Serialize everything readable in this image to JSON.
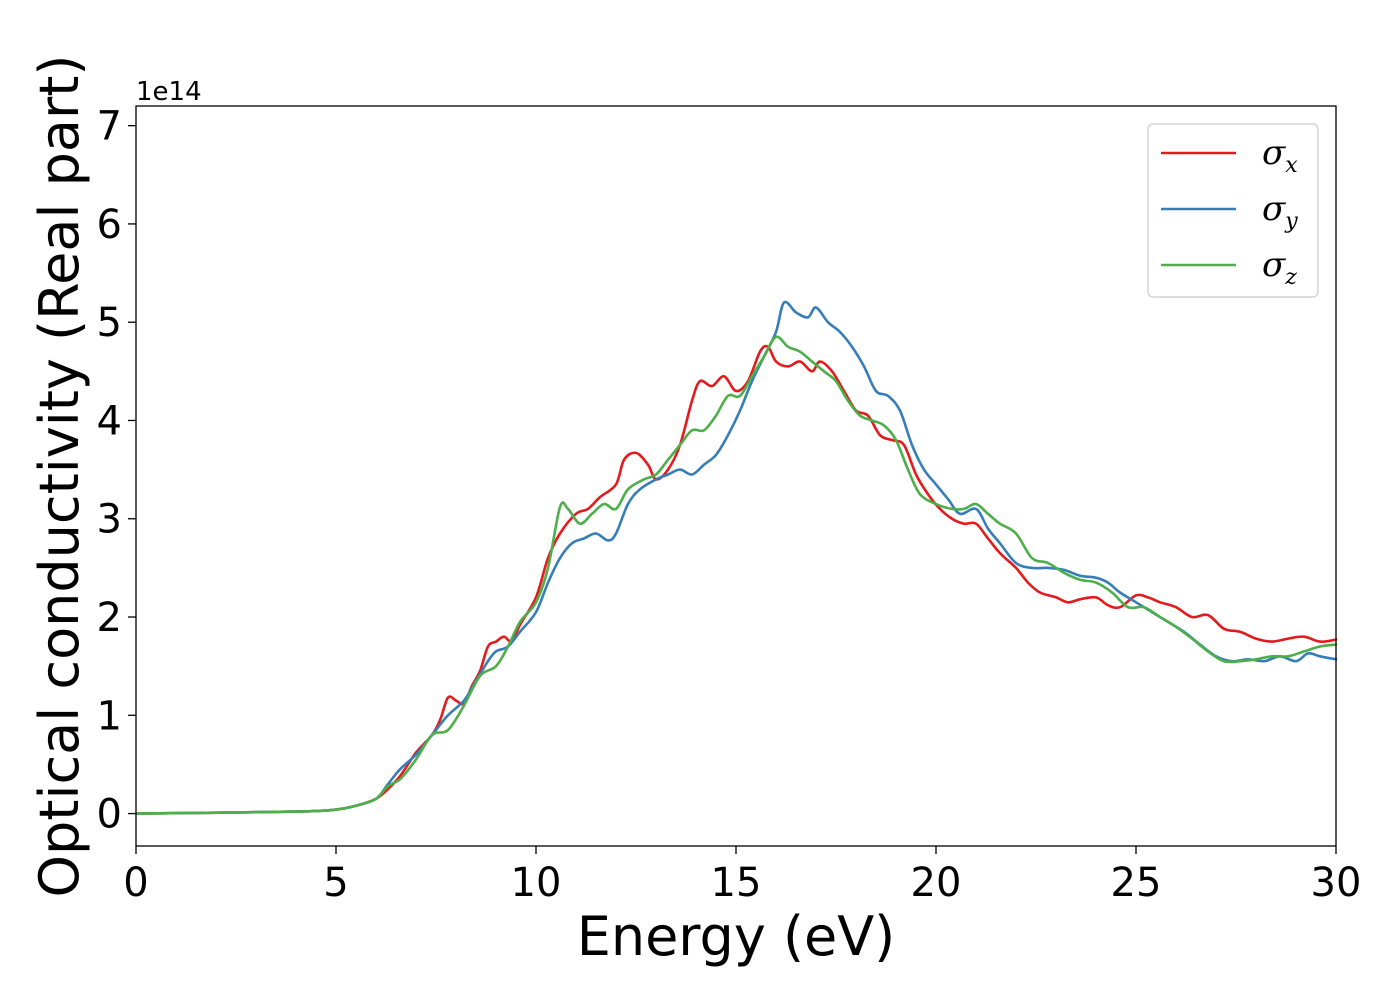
{
  "chart_data": {
    "type": "line",
    "title": "",
    "xlabel": "Energy (eV)",
    "ylabel": "Optical conductivity (Real part)",
    "y_offset_label": "1e14",
    "xlim": [
      0,
      30
    ],
    "ylim": [
      -0.33,
      7.2
    ],
    "x_ticks": [
      0,
      5,
      10,
      15,
      20,
      25,
      30
    ],
    "y_ticks": [
      0,
      1,
      2,
      3,
      4,
      5,
      6,
      7
    ],
    "x_tick_labels": [
      "0",
      "5",
      "10",
      "15",
      "20",
      "25",
      "30"
    ],
    "y_tick_labels": [
      "0",
      "1",
      "2",
      "3",
      "4",
      "5",
      "6",
      "7"
    ],
    "grid": false,
    "legend_position": "top-right",
    "series": [
      {
        "name": "σx",
        "symbol": "σ",
        "subscript": "x",
        "color": "#e41a1c",
        "points": [
          [
            0,
            0
          ],
          [
            4,
            0.02
          ],
          [
            5,
            0.04
          ],
          [
            5.5,
            0.08
          ],
          [
            6,
            0.15
          ],
          [
            6.3,
            0.25
          ],
          [
            6.6,
            0.38
          ],
          [
            7,
            0.62
          ],
          [
            7.4,
            0.8
          ],
          [
            7.6,
            0.95
          ],
          [
            7.8,
            1.18
          ],
          [
            8,
            1.15
          ],
          [
            8.2,
            1.12
          ],
          [
            8.4,
            1.3
          ],
          [
            8.6,
            1.45
          ],
          [
            8.8,
            1.7
          ],
          [
            9,
            1.75
          ],
          [
            9.2,
            1.8
          ],
          [
            9.4,
            1.75
          ],
          [
            9.6,
            1.92
          ],
          [
            10,
            2.2
          ],
          [
            10.3,
            2.6
          ],
          [
            10.6,
            2.85
          ],
          [
            11,
            3.05
          ],
          [
            11.3,
            3.1
          ],
          [
            11.6,
            3.22
          ],
          [
            12,
            3.35
          ],
          [
            12.2,
            3.6
          ],
          [
            12.5,
            3.67
          ],
          [
            12.8,
            3.55
          ],
          [
            13,
            3.4
          ],
          [
            13.3,
            3.5
          ],
          [
            13.6,
            3.75
          ],
          [
            13.9,
            4.2
          ],
          [
            14.1,
            4.4
          ],
          [
            14.4,
            4.35
          ],
          [
            14.7,
            4.45
          ],
          [
            15,
            4.3
          ],
          [
            15.3,
            4.4
          ],
          [
            15.6,
            4.7
          ],
          [
            15.8,
            4.75
          ],
          [
            16,
            4.6
          ],
          [
            16.3,
            4.55
          ],
          [
            16.6,
            4.6
          ],
          [
            16.9,
            4.5
          ],
          [
            17.1,
            4.6
          ],
          [
            17.4,
            4.5
          ],
          [
            17.7,
            4.3
          ],
          [
            18,
            4.1
          ],
          [
            18.3,
            4.05
          ],
          [
            18.6,
            3.85
          ],
          [
            18.9,
            3.8
          ],
          [
            19.2,
            3.75
          ],
          [
            19.5,
            3.45
          ],
          [
            19.8,
            3.25
          ],
          [
            20.1,
            3.1
          ],
          [
            20.4,
            3.0
          ],
          [
            20.7,
            2.95
          ],
          [
            21,
            2.95
          ],
          [
            21.3,
            2.8
          ],
          [
            21.6,
            2.65
          ],
          [
            22,
            2.5
          ],
          [
            22.3,
            2.35
          ],
          [
            22.6,
            2.25
          ],
          [
            23,
            2.2
          ],
          [
            23.3,
            2.15
          ],
          [
            23.6,
            2.18
          ],
          [
            24,
            2.2
          ],
          [
            24.3,
            2.12
          ],
          [
            24.6,
            2.1
          ],
          [
            25,
            2.22
          ],
          [
            25.3,
            2.2
          ],
          [
            25.6,
            2.15
          ],
          [
            26,
            2.1
          ],
          [
            26.4,
            2.0
          ],
          [
            26.8,
            2.02
          ],
          [
            27.2,
            1.88
          ],
          [
            27.6,
            1.85
          ],
          [
            28,
            1.78
          ],
          [
            28.4,
            1.75
          ],
          [
            28.8,
            1.78
          ],
          [
            29.2,
            1.8
          ],
          [
            29.6,
            1.75
          ],
          [
            30,
            1.77
          ]
        ]
      },
      {
        "name": "σy",
        "symbol": "σ",
        "subscript": "y",
        "color": "#377eb8",
        "points": [
          [
            0,
            0
          ],
          [
            4,
            0.02
          ],
          [
            5,
            0.04
          ],
          [
            5.5,
            0.08
          ],
          [
            6,
            0.15
          ],
          [
            6.3,
            0.3
          ],
          [
            6.6,
            0.45
          ],
          [
            7,
            0.6
          ],
          [
            7.4,
            0.8
          ],
          [
            7.8,
            1.0
          ],
          [
            8.2,
            1.15
          ],
          [
            8.5,
            1.35
          ],
          [
            8.8,
            1.55
          ],
          [
            9,
            1.65
          ],
          [
            9.3,
            1.7
          ],
          [
            9.6,
            1.85
          ],
          [
            10,
            2.05
          ],
          [
            10.3,
            2.35
          ],
          [
            10.6,
            2.6
          ],
          [
            10.9,
            2.75
          ],
          [
            11.2,
            2.8
          ],
          [
            11.5,
            2.85
          ],
          [
            11.8,
            2.78
          ],
          [
            12,
            2.85
          ],
          [
            12.3,
            3.15
          ],
          [
            12.6,
            3.3
          ],
          [
            13,
            3.4
          ],
          [
            13.3,
            3.45
          ],
          [
            13.6,
            3.5
          ],
          [
            13.9,
            3.45
          ],
          [
            14.2,
            3.55
          ],
          [
            14.5,
            3.65
          ],
          [
            14.8,
            3.85
          ],
          [
            15.1,
            4.1
          ],
          [
            15.4,
            4.4
          ],
          [
            15.7,
            4.65
          ],
          [
            16,
            4.9
          ],
          [
            16.2,
            5.2
          ],
          [
            16.5,
            5.1
          ],
          [
            16.8,
            5.05
          ],
          [
            17,
            5.15
          ],
          [
            17.3,
            5.0
          ],
          [
            17.6,
            4.9
          ],
          [
            17.9,
            4.75
          ],
          [
            18.2,
            4.55
          ],
          [
            18.5,
            4.3
          ],
          [
            18.8,
            4.25
          ],
          [
            19.1,
            4.1
          ],
          [
            19.4,
            3.75
          ],
          [
            19.7,
            3.5
          ],
          [
            20,
            3.35
          ],
          [
            20.3,
            3.2
          ],
          [
            20.6,
            3.05
          ],
          [
            21,
            3.1
          ],
          [
            21.3,
            2.9
          ],
          [
            21.6,
            2.75
          ],
          [
            22,
            2.55
          ],
          [
            22.4,
            2.5
          ],
          [
            22.8,
            2.5
          ],
          [
            23.2,
            2.48
          ],
          [
            23.6,
            2.42
          ],
          [
            24,
            2.4
          ],
          [
            24.3,
            2.35
          ],
          [
            24.6,
            2.25
          ],
          [
            25,
            2.15
          ],
          [
            25.4,
            2.05
          ],
          [
            25.8,
            1.95
          ],
          [
            26.2,
            1.85
          ],
          [
            26.6,
            1.72
          ],
          [
            27,
            1.6
          ],
          [
            27.4,
            1.55
          ],
          [
            27.8,
            1.57
          ],
          [
            28.2,
            1.55
          ],
          [
            28.6,
            1.6
          ],
          [
            29,
            1.55
          ],
          [
            29.3,
            1.63
          ],
          [
            29.6,
            1.6
          ],
          [
            30,
            1.57
          ]
        ]
      },
      {
        "name": "σz",
        "symbol": "σ",
        "subscript": "z",
        "color": "#4daf4a",
        "points": [
          [
            0,
            0
          ],
          [
            4,
            0.02
          ],
          [
            5,
            0.04
          ],
          [
            5.5,
            0.08
          ],
          [
            6,
            0.15
          ],
          [
            6.3,
            0.28
          ],
          [
            6.6,
            0.35
          ],
          [
            7,
            0.55
          ],
          [
            7.4,
            0.8
          ],
          [
            7.8,
            0.85
          ],
          [
            8.2,
            1.1
          ],
          [
            8.6,
            1.4
          ],
          [
            9,
            1.5
          ],
          [
            9.3,
            1.7
          ],
          [
            9.6,
            1.95
          ],
          [
            10,
            2.15
          ],
          [
            10.3,
            2.5
          ],
          [
            10.6,
            3.12
          ],
          [
            10.8,
            3.1
          ],
          [
            11.1,
            2.95
          ],
          [
            11.4,
            3.05
          ],
          [
            11.7,
            3.15
          ],
          [
            12,
            3.1
          ],
          [
            12.3,
            3.3
          ],
          [
            12.7,
            3.4
          ],
          [
            13,
            3.45
          ],
          [
            13.3,
            3.6
          ],
          [
            13.6,
            3.75
          ],
          [
            13.9,
            3.9
          ],
          [
            14.2,
            3.9
          ],
          [
            14.5,
            4.05
          ],
          [
            14.8,
            4.25
          ],
          [
            15.1,
            4.25
          ],
          [
            15.4,
            4.45
          ],
          [
            15.7,
            4.65
          ],
          [
            16,
            4.85
          ],
          [
            16.3,
            4.75
          ],
          [
            16.6,
            4.7
          ],
          [
            16.9,
            4.6
          ],
          [
            17.2,
            4.5
          ],
          [
            17.5,
            4.4
          ],
          [
            17.8,
            4.2
          ],
          [
            18.1,
            4.05
          ],
          [
            18.4,
            4.0
          ],
          [
            18.7,
            3.95
          ],
          [
            19,
            3.8
          ],
          [
            19.3,
            3.5
          ],
          [
            19.6,
            3.25
          ],
          [
            20,
            3.15
          ],
          [
            20.4,
            3.1
          ],
          [
            20.7,
            3.1
          ],
          [
            21,
            3.15
          ],
          [
            21.3,
            3.05
          ],
          [
            21.6,
            2.95
          ],
          [
            22,
            2.85
          ],
          [
            22.4,
            2.6
          ],
          [
            22.8,
            2.55
          ],
          [
            23.2,
            2.45
          ],
          [
            23.6,
            2.38
          ],
          [
            24,
            2.35
          ],
          [
            24.4,
            2.25
          ],
          [
            24.8,
            2.1
          ],
          [
            25.2,
            2.1
          ],
          [
            25.6,
            2.0
          ],
          [
            26,
            1.9
          ],
          [
            26.4,
            1.78
          ],
          [
            26.8,
            1.65
          ],
          [
            27.2,
            1.55
          ],
          [
            27.6,
            1.55
          ],
          [
            28,
            1.57
          ],
          [
            28.4,
            1.6
          ],
          [
            28.8,
            1.6
          ],
          [
            29.2,
            1.65
          ],
          [
            29.6,
            1.7
          ],
          [
            30,
            1.72
          ]
        ]
      }
    ]
  }
}
